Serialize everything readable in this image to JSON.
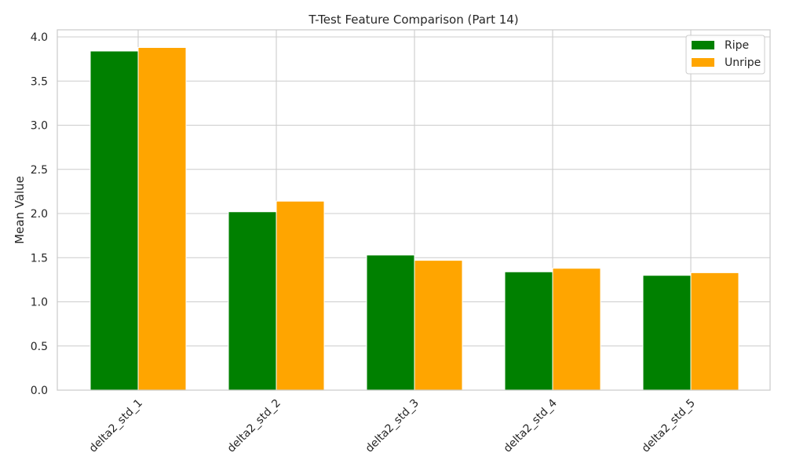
{
  "chart_data": {
    "type": "bar",
    "title": "T-Test Feature Comparison (Part 14)",
    "xlabel": "",
    "ylabel": "Mean Value",
    "categories": [
      "delta2_std_1",
      "delta2_std_2",
      "delta2_std_3",
      "delta2_std_4",
      "delta2_std_5"
    ],
    "series": [
      {
        "name": "Ripe",
        "color": "#008000",
        "values": [
          3.84,
          2.02,
          1.53,
          1.34,
          1.3
        ]
      },
      {
        "name": "Unripe",
        "color": "#FFA500",
        "values": [
          3.88,
          2.14,
          1.47,
          1.38,
          1.33
        ]
      }
    ],
    "ylim": [
      0,
      4.08
    ],
    "yticks": [
      "0.0",
      "0.5",
      "1.0",
      "1.5",
      "2.0",
      "2.5",
      "3.0",
      "3.5",
      "4.0"
    ],
    "grid": true,
    "legend_position": "top-right",
    "xtick_rotation": "45deg"
  }
}
